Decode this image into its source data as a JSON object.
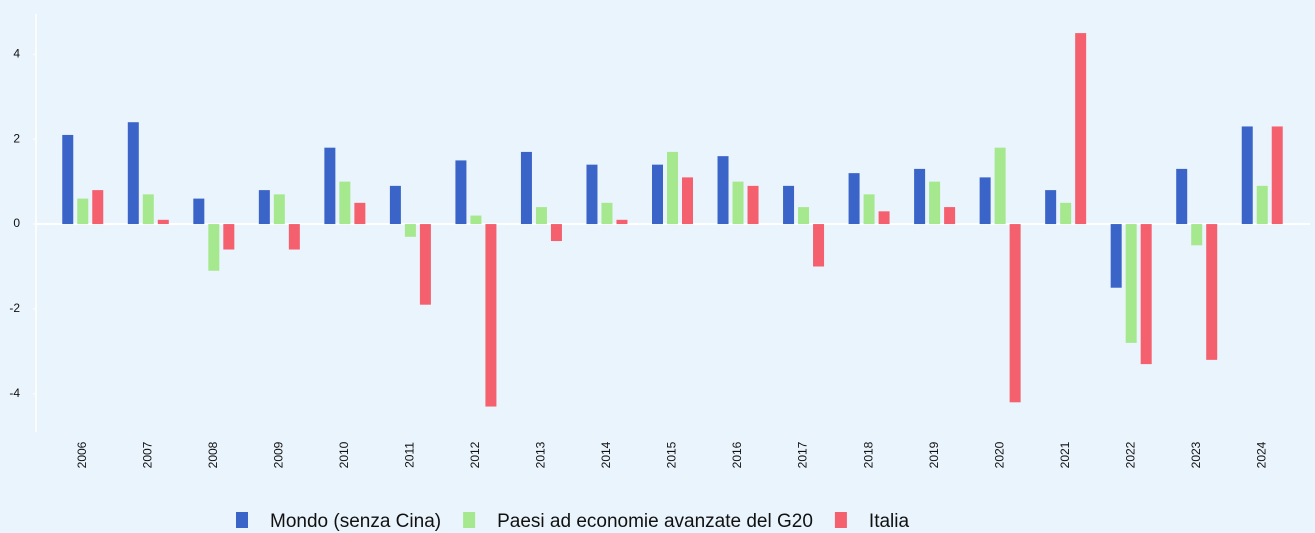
{
  "chart_data": {
    "type": "bar",
    "categories": [
      "2006",
      "2007",
      "2008",
      "2009",
      "2010",
      "2011",
      "2012",
      "2013",
      "2014",
      "2015",
      "2016",
      "2017",
      "2018",
      "2019",
      "2020",
      "2021",
      "2022",
      "2023",
      "2024"
    ],
    "series": [
      {
        "name": "Mondo (senza Cina)",
        "color": "#3a64c8",
        "values": [
          2.1,
          2.4,
          0.6,
          0.8,
          1.8,
          0.9,
          1.5,
          1.7,
          1.4,
          1.4,
          1.6,
          0.9,
          1.2,
          1.3,
          1.1,
          0.8,
          -1.5,
          1.3,
          2.3
        ]
      },
      {
        "name": "Paesi ad economie avanzate del G20",
        "color": "#a6e88e",
        "values": [
          0.6,
          0.7,
          -1.1,
          0.7,
          1.0,
          -0.3,
          0.2,
          0.4,
          0.5,
          1.7,
          1.0,
          0.4,
          0.7,
          1.0,
          1.8,
          0.5,
          -2.8,
          -0.5,
          0.9
        ]
      },
      {
        "name": "Italia",
        "color": "#f5606e",
        "values": [
          0.8,
          0.1,
          -0.6,
          -0.6,
          0.5,
          -1.9,
          -4.3,
          -0.4,
          0.1,
          1.1,
          0.9,
          -1.0,
          0.3,
          0.4,
          -4.2,
          4.5,
          -3.3,
          -3.2,
          2.3
        ]
      }
    ],
    "ylim": [
      -4.9,
      4.95
    ],
    "yticks": [
      -4,
      -2,
      0,
      2,
      4
    ],
    "grid": false,
    "legend": "bottom"
  }
}
